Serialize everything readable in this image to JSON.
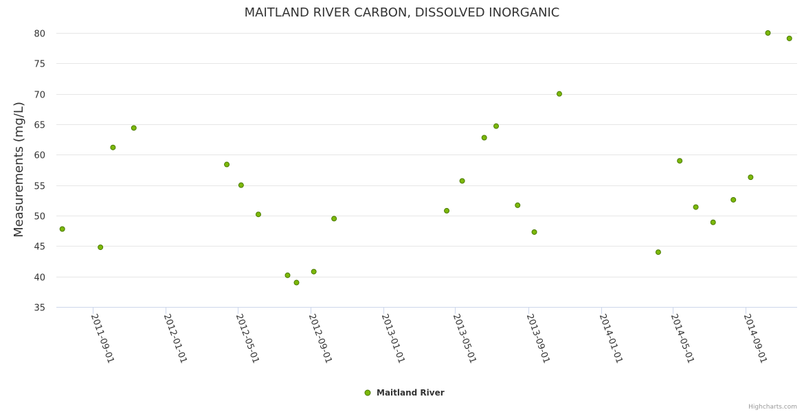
{
  "chart_data": {
    "type": "scatter",
    "title": "MAITLAND RIVER CARBON, DISSOLVED INORGANIC",
    "xlabel": "",
    "ylabel": "Measurements (mg/L)",
    "ylim": [
      35,
      80
    ],
    "yticks": [
      35,
      40,
      45,
      50,
      55,
      60,
      65,
      70,
      75,
      80
    ],
    "xlim": [
      "2011-07-02",
      "2014-11-26"
    ],
    "xticks": [
      "2011-09-01",
      "2012-01-01",
      "2012-05-01",
      "2012-09-01",
      "2013-01-01",
      "2013-05-01",
      "2013-09-01",
      "2014-01-01",
      "2014-05-01",
      "2014-09-01"
    ],
    "grid": true,
    "legend_placement": "bottom-center",
    "series": [
      {
        "name": "Maitland River",
        "color": "#7cb809",
        "stroke": "#4a7a00",
        "points": [
          {
            "x": "2011-07-12",
            "y": 47.8
          },
          {
            "x": "2011-09-14",
            "y": 44.8
          },
          {
            "x": "2011-10-05",
            "y": 61.2
          },
          {
            "x": "2011-11-09",
            "y": 64.4
          },
          {
            "x": "2012-04-13",
            "y": 58.4
          },
          {
            "x": "2012-05-07",
            "y": 55.0
          },
          {
            "x": "2012-06-05",
            "y": 50.2
          },
          {
            "x": "2012-07-24",
            "y": 40.2
          },
          {
            "x": "2012-08-08",
            "y": 39.0
          },
          {
            "x": "2012-09-06",
            "y": 40.8
          },
          {
            "x": "2012-10-10",
            "y": 49.5
          },
          {
            "x": "2013-04-17",
            "y": 50.8
          },
          {
            "x": "2013-05-13",
            "y": 55.7
          },
          {
            "x": "2013-06-19",
            "y": 62.8
          },
          {
            "x": "2013-07-09",
            "y": 64.7
          },
          {
            "x": "2013-08-14",
            "y": 51.7
          },
          {
            "x": "2013-09-11",
            "y": 47.3
          },
          {
            "x": "2013-10-23",
            "y": 70.0
          },
          {
            "x": "2014-04-07",
            "y": 44.0
          },
          {
            "x": "2014-05-13",
            "y": 59.0
          },
          {
            "x": "2014-06-09",
            "y": 51.4
          },
          {
            "x": "2014-07-08",
            "y": 48.9
          },
          {
            "x": "2014-08-11",
            "y": 52.6
          },
          {
            "x": "2014-09-09",
            "y": 56.3
          },
          {
            "x": "2014-10-08",
            "y": 80.0
          },
          {
            "x": "2014-11-13",
            "y": 79.1
          }
        ]
      }
    ]
  },
  "credits": "Highcharts.com"
}
